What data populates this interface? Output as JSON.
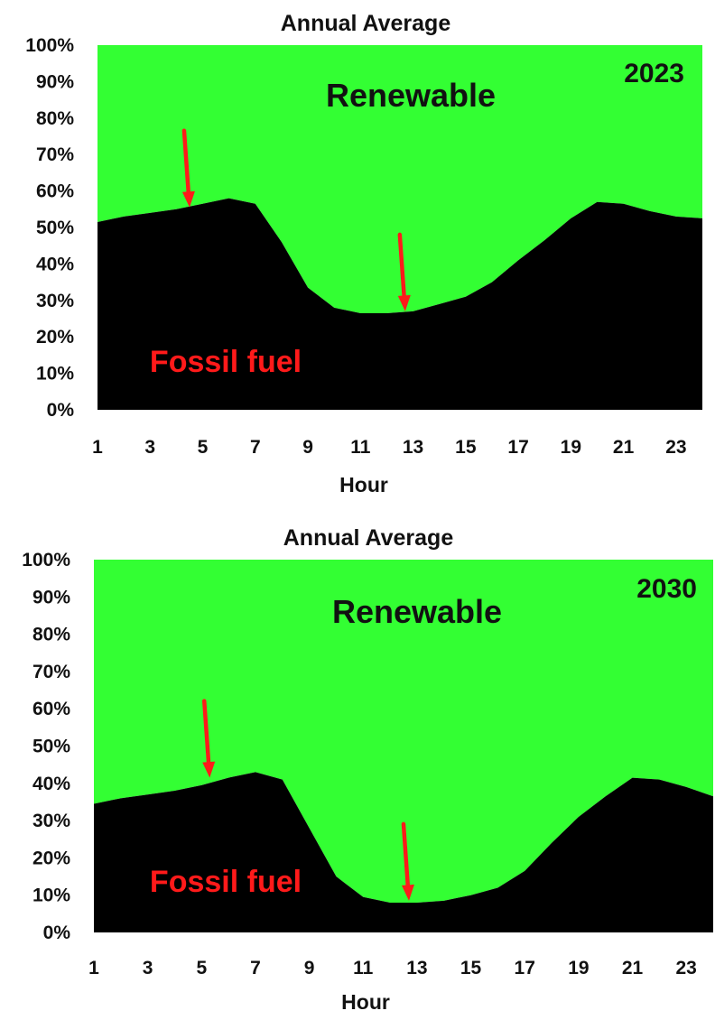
{
  "colors": {
    "renewable": "#33ff33",
    "fossil": "#000000",
    "arrow": "#ff1a1a"
  },
  "chart_data": [
    {
      "type": "area",
      "title": "Annual Average",
      "xlabel": "Hour",
      "ylabel": "",
      "year_label": "2023",
      "area_labels": {
        "renewable": "Renewable",
        "fossil": "Fossil fuel"
      },
      "x": [
        1,
        2,
        3,
        4,
        5,
        6,
        7,
        8,
        9,
        10,
        11,
        12,
        13,
        14,
        15,
        16,
        17,
        18,
        19,
        20,
        21,
        22,
        23,
        24
      ],
      "x_ticks": [
        "1",
        "3",
        "5",
        "7",
        "9",
        "11",
        "13",
        "15",
        "17",
        "19",
        "21",
        "23"
      ],
      "y_ticks": [
        "0%",
        "10%",
        "20%",
        "30%",
        "40%",
        "50%",
        "60%",
        "70%",
        "80%",
        "90%",
        "100%"
      ],
      "ylim": [
        0,
        100
      ],
      "stacked": true,
      "series": [
        {
          "name": "Fossil fuel",
          "values": [
            51.5,
            53,
            54,
            55,
            56.5,
            58,
            56.5,
            46,
            33.5,
            28,
            26.5,
            26.5,
            27,
            29,
            31,
            35,
            41,
            46.5,
            52.5,
            57,
            56.5,
            54.5,
            53,
            52.5
          ]
        },
        {
          "name": "Renewable",
          "values": [
            48.5,
            47,
            46,
            45,
            43.5,
            42,
            43.5,
            54,
            66.5,
            72,
            73.5,
            73.5,
            73,
            71,
            69,
            65,
            59,
            53.5,
            47.5,
            43,
            43.5,
            45.5,
            47,
            47.5
          ]
        }
      ],
      "annotations": [
        {
          "type": "arrow",
          "x": 4.5,
          "y": 55.5
        },
        {
          "type": "arrow",
          "x": 12.7,
          "y": 27
        }
      ]
    },
    {
      "type": "area",
      "title": "Annual Average",
      "xlabel": "Hour",
      "ylabel": "",
      "year_label": "2030",
      "area_labels": {
        "renewable": "Renewable",
        "fossil": "Fossil fuel"
      },
      "x": [
        1,
        2,
        3,
        4,
        5,
        6,
        7,
        8,
        9,
        10,
        11,
        12,
        13,
        14,
        15,
        16,
        17,
        18,
        19,
        20,
        21,
        22,
        23,
        24
      ],
      "x_ticks": [
        "1",
        "3",
        "5",
        "7",
        "9",
        "11",
        "13",
        "15",
        "17",
        "19",
        "21",
        "23"
      ],
      "y_ticks": [
        "0%",
        "10%",
        "20%",
        "30%",
        "40%",
        "50%",
        "60%",
        "70%",
        "80%",
        "90%",
        "100%"
      ],
      "ylim": [
        0,
        100
      ],
      "stacked": true,
      "series": [
        {
          "name": "Fossil fuel",
          "values": [
            34.5,
            36,
            37,
            38,
            39.5,
            41.5,
            43,
            41,
            28,
            15,
            9.5,
            8,
            8,
            8.5,
            10,
            12,
            16.5,
            24,
            31,
            36.5,
            41.5,
            41,
            39,
            36.5
          ]
        },
        {
          "name": "Renewable",
          "values": [
            65.5,
            64,
            63,
            62,
            60.5,
            58.5,
            57,
            59,
            72,
            85,
            90.5,
            92,
            92,
            91.5,
            90,
            88,
            83.5,
            76,
            69,
            63.5,
            58.5,
            59,
            61,
            63.5
          ]
        }
      ],
      "annotations": [
        {
          "type": "arrow",
          "x": 5.3,
          "y": 41.5
        },
        {
          "type": "arrow",
          "x": 12.7,
          "y": 8.5
        }
      ]
    }
  ]
}
